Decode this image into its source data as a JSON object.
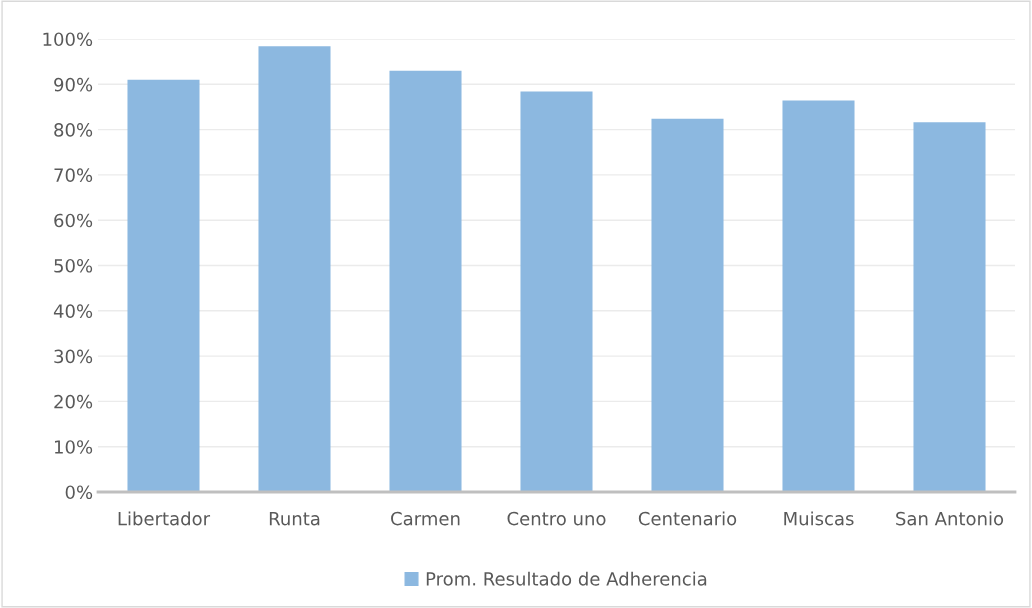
{
  "chart_data": {
    "type": "bar",
    "categories": [
      "Libertador",
      "Runta",
      "Carmen",
      "Centro uno",
      "Centenario",
      "Muiscas",
      "San Antonio"
    ],
    "series": [
      {
        "name": "Prom. Resultado de Adherencia",
        "color": "#8cb8e0",
        "values": [
          91.0,
          98.4,
          93.0,
          88.4,
          82.4,
          86.4,
          81.6
        ]
      }
    ],
    "ylim": [
      0,
      100
    ],
    "yticks": [
      {
        "value": 0,
        "label": "0%"
      },
      {
        "value": 10,
        "label": "10%"
      },
      {
        "value": 20,
        "label": "20%"
      },
      {
        "value": 30,
        "label": "30%"
      },
      {
        "value": 40,
        "label": "40%"
      },
      {
        "value": 50,
        "label": "50%"
      },
      {
        "value": 60,
        "label": "60%"
      },
      {
        "value": 70,
        "label": "70%"
      },
      {
        "value": 80,
        "label": "80%"
      },
      {
        "value": 90,
        "label": "90%"
      },
      {
        "value": 100,
        "label": "100%"
      }
    ],
    "grid": "y",
    "legend": "bottom"
  }
}
